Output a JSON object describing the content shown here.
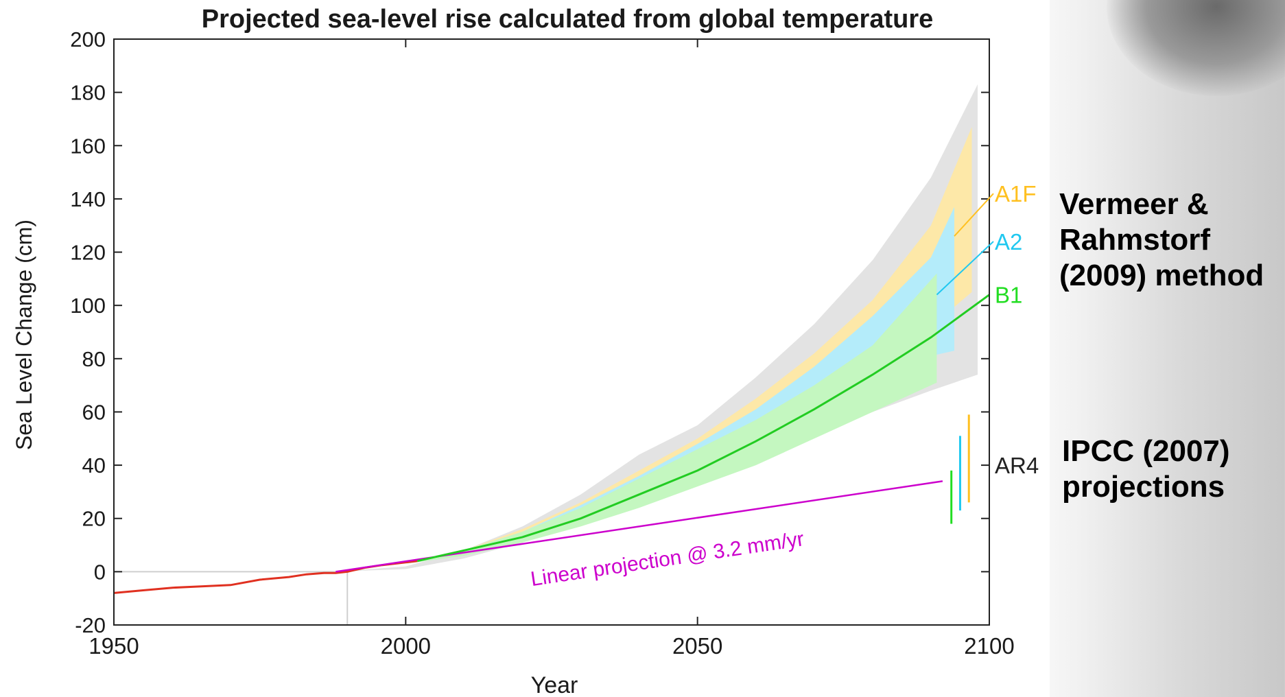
{
  "chart_data": {
    "type": "line",
    "title": "Projected sea-level rise calculated from global temperature",
    "xlabel": "Year",
    "ylabel": "Sea Level Change (cm)",
    "xlim": [
      1950,
      2100
    ],
    "ylim": [
      -20,
      200
    ],
    "x_ticks": [
      1950,
      2000,
      2050,
      2100
    ],
    "y_ticks": [
      -20,
      0,
      20,
      40,
      60,
      80,
      100,
      120,
      140,
      160,
      180,
      200
    ],
    "grid": false,
    "observed": {
      "color": "#e03020",
      "x": [
        1950,
        1955,
        1960,
        1965,
        1970,
        1975,
        1980,
        1983,
        1986,
        1988,
        1990,
        1993,
        1996,
        2000,
        2002
      ],
      "y": [
        -8,
        -7,
        -6,
        -5.5,
        -5,
        -3,
        -2,
        -1,
        -0.5,
        -0.5,
        0,
        1.5,
        2.5,
        3.5,
        4
      ]
    },
    "bands": [
      {
        "name": "overall range",
        "color": "#e3e3e3",
        "x_end": 2098,
        "points": [
          [
            1988,
            0
          ],
          [
            2000,
            2
          ],
          [
            2010,
            8
          ],
          [
            2020,
            17
          ],
          [
            2030,
            29
          ],
          [
            2040,
            44
          ],
          [
            2050,
            55
          ],
          [
            2060,
            73
          ],
          [
            2070,
            93
          ],
          [
            2080,
            117
          ],
          [
            2090,
            148
          ],
          [
            2098,
            183
          ]
        ],
        "lower": [
          [
            1988,
            0
          ],
          [
            2000,
            1
          ],
          [
            2010,
            5
          ],
          [
            2020,
            11
          ],
          [
            2030,
            19
          ],
          [
            2040,
            27
          ],
          [
            2050,
            34
          ],
          [
            2060,
            42
          ],
          [
            2070,
            51
          ],
          [
            2080,
            60
          ],
          [
            2090,
            68
          ],
          [
            2098,
            74
          ]
        ]
      },
      {
        "name": "A1F",
        "color": "#fde8a8",
        "points": [
          [
            2000,
            3
          ],
          [
            2010,
            8
          ],
          [
            2020,
            16
          ],
          [
            2030,
            26
          ],
          [
            2040,
            38
          ],
          [
            2050,
            50
          ],
          [
            2060,
            65
          ],
          [
            2070,
            82
          ],
          [
            2080,
            102
          ],
          [
            2090,
            130
          ],
          [
            2097,
            167
          ]
        ],
        "lower": [
          [
            2000,
            3
          ],
          [
            2010,
            7
          ],
          [
            2020,
            13
          ],
          [
            2030,
            22
          ],
          [
            2040,
            32
          ],
          [
            2050,
            44
          ],
          [
            2060,
            56
          ],
          [
            2070,
            68
          ],
          [
            2080,
            80
          ],
          [
            2090,
            92
          ],
          [
            2097,
            105
          ]
        ]
      },
      {
        "name": "A2",
        "color": "#b4ecfa",
        "points": [
          [
            2000,
            3
          ],
          [
            2010,
            8
          ],
          [
            2020,
            15
          ],
          [
            2030,
            25
          ],
          [
            2040,
            36
          ],
          [
            2050,
            48
          ],
          [
            2060,
            61
          ],
          [
            2070,
            77
          ],
          [
            2080,
            96
          ],
          [
            2090,
            118
          ],
          [
            2094,
            137
          ]
        ],
        "lower": [
          [
            2000,
            3
          ],
          [
            2010,
            7
          ],
          [
            2020,
            13
          ],
          [
            2030,
            21
          ],
          [
            2040,
            31
          ],
          [
            2050,
            41
          ],
          [
            2060,
            52
          ],
          [
            2070,
            62
          ],
          [
            2080,
            72
          ],
          [
            2090,
            81
          ],
          [
            2094,
            83
          ]
        ]
      },
      {
        "name": "B1",
        "color": "#c4f7c0",
        "points": [
          [
            2000,
            3
          ],
          [
            2010,
            8
          ],
          [
            2020,
            15
          ],
          [
            2030,
            24
          ],
          [
            2040,
            35
          ],
          [
            2050,
            46
          ],
          [
            2060,
            57
          ],
          [
            2070,
            70
          ],
          [
            2080,
            85
          ],
          [
            2091,
            112
          ]
        ],
        "lower": [
          [
            2000,
            3
          ],
          [
            2010,
            6
          ],
          [
            2020,
            11
          ],
          [
            2030,
            17
          ],
          [
            2040,
            24
          ],
          [
            2050,
            32
          ],
          [
            2060,
            40
          ],
          [
            2070,
            50
          ],
          [
            2080,
            60
          ],
          [
            2091,
            71
          ]
        ]
      }
    ],
    "projection": {
      "color": "#22cc22",
      "x": [
        2002,
        2010,
        2020,
        2030,
        2040,
        2050,
        2060,
        2070,
        2080,
        2090,
        2100
      ],
      "y": [
        4,
        8,
        13,
        20,
        29,
        38,
        49,
        61,
        74,
        88,
        104
      ]
    },
    "linear": {
      "color": "#cc00cc",
      "label": "Linear projection @ 3.2 mm/yr",
      "x": [
        1988,
        2092
      ],
      "y": [
        0,
        34
      ]
    },
    "scenario_labels": [
      {
        "text": "A1F",
        "color": "#ffc020",
        "y": 142,
        "from": [
          2094,
          126
        ]
      },
      {
        "text": "A2",
        "color": "#20c8f0",
        "y": 124,
        "from": [
          2091,
          104
        ]
      },
      {
        "text": "B1",
        "color": "#22dd22",
        "y": 104,
        "from": null
      }
    ],
    "ar4": {
      "label": "AR4",
      "ranges": [
        {
          "color": "#22dd22",
          "x": 2093.5,
          "ymin": 18,
          "ymax": 38
        },
        {
          "color": "#20c8f0",
          "x": 2095.0,
          "ymin": 23,
          "ymax": 51
        },
        {
          "color": "#ffc020",
          "x": 2096.5,
          "ymin": 26,
          "ymax": 59
        }
      ]
    },
    "reference_line_year": 1990
  },
  "side_labels": {
    "vermeer": "Vermeer &\nRahmstorf\n(2009) method",
    "ipcc": "IPCC (2007)\nprojections"
  }
}
